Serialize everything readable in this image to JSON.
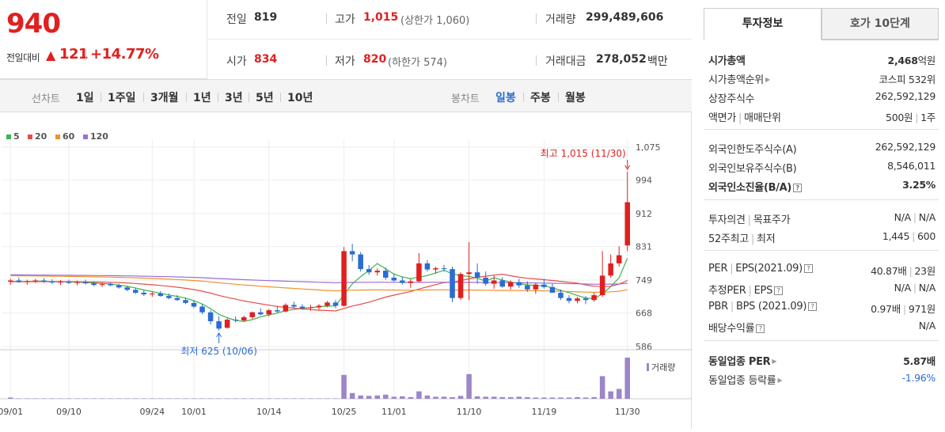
{
  "quote": {
    "price": "940",
    "change_label": "전일대비",
    "change_value": "121",
    "change_pct": "+14.77%"
  },
  "summary": {
    "prev_label": "전일",
    "prev_value": "819",
    "high_label": "고가",
    "high_value": "1,015",
    "high_limit": "(상한가 1,060)",
    "volume_label": "거래량",
    "volume_value": "299,489,606",
    "open_label": "시가",
    "open_value": "834",
    "low_label": "저가",
    "low_value": "820",
    "low_limit": "(하한가 574)",
    "amount_label": "거래대금",
    "amount_value": "278,052",
    "amount_unit": "백만"
  },
  "period_bar": {
    "line_label": "선차트",
    "line_items": [
      "1일",
      "1주일",
      "3개월",
      "1년",
      "3년",
      "5년",
      "10년"
    ],
    "candle_label": "봉차트",
    "candle_items": [
      "일봉",
      "주봉",
      "월봉"
    ],
    "candle_selected": "일봉"
  },
  "chart_data": {
    "type": "candlestick",
    "ma_legend": [
      {
        "name": "5",
        "color": "#3cb44b"
      },
      {
        "name": "20",
        "color": "#e84c4c"
      },
      {
        "name": "60",
        "color": "#f0922b"
      },
      {
        "name": "120",
        "color": "#9b6fd1"
      }
    ],
    "y_ticks": [
      "1,075",
      "994",
      "912",
      "831",
      "749",
      "668",
      "586"
    ],
    "y_range": [
      586,
      1075
    ],
    "x_ticks": [
      "09/01",
      "09/10",
      "09/24",
      "10/01",
      "10/14",
      "10/25",
      "11/01",
      "11/10",
      "11/19",
      "11/30"
    ],
    "high_annotation": "최고 1,015 (11/30)",
    "low_annotation": "최저 625 (10/06)",
    "volume_label": "거래량",
    "candles": [
      [
        745,
        752,
        738,
        748
      ],
      [
        748,
        755,
        742,
        744
      ],
      [
        744,
        750,
        738,
        746
      ],
      [
        746,
        752,
        742,
        748
      ],
      [
        748,
        754,
        742,
        745
      ],
      [
        745,
        751,
        740,
        743
      ],
      [
        743,
        749,
        737,
        745
      ],
      [
        745,
        750,
        740,
        742
      ],
      [
        742,
        748,
        736,
        744
      ],
      [
        744,
        750,
        738,
        741
      ],
      [
        741,
        746,
        734,
        737
      ],
      [
        737,
        742,
        732,
        739
      ],
      [
        739,
        744,
        734,
        736
      ],
      [
        736,
        740,
        728,
        731
      ],
      [
        731,
        735,
        722,
        725
      ],
      [
        725,
        730,
        715,
        718
      ],
      [
        718,
        724,
        710,
        714
      ],
      [
        714,
        720,
        708,
        716
      ],
      [
        716,
        722,
        708,
        710
      ],
      [
        710,
        716,
        702,
        705
      ],
      [
        705,
        712,
        698,
        700
      ],
      [
        700,
        706,
        690,
        693
      ],
      [
        693,
        700,
        680,
        684
      ],
      [
        684,
        690,
        665,
        670
      ],
      [
        670,
        675,
        640,
        648
      ],
      [
        648,
        660,
        625,
        630
      ],
      [
        632,
        655,
        630,
        652
      ],
      [
        652,
        660,
        645,
        650
      ],
      [
        650,
        662,
        646,
        658
      ],
      [
        658,
        672,
        654,
        670
      ],
      [
        670,
        680,
        662,
        665
      ],
      [
        665,
        678,
        660,
        675
      ],
      [
        675,
        686,
        668,
        672
      ],
      [
        672,
        692,
        670,
        688
      ],
      [
        688,
        696,
        680,
        684
      ],
      [
        684,
        690,
        676,
        680
      ],
      [
        680,
        688,
        674,
        682
      ],
      [
        682,
        690,
        676,
        686
      ],
      [
        686,
        698,
        682,
        694
      ],
      [
        694,
        700,
        680,
        686
      ],
      [
        686,
        830,
        684,
        820
      ],
      [
        820,
        838,
        795,
        812
      ],
      [
        812,
        818,
        770,
        776
      ],
      [
        776,
        786,
        762,
        768
      ],
      [
        768,
        778,
        760,
        772
      ],
      [
        772,
        780,
        750,
        755
      ],
      [
        755,
        765,
        745,
        748
      ],
      [
        748,
        758,
        738,
        742
      ],
      [
        742,
        752,
        730,
        746
      ],
      [
        746,
        815,
        744,
        790
      ],
      [
        790,
        798,
        770,
        775
      ],
      [
        775,
        782,
        765,
        778
      ],
      [
        778,
        786,
        770,
        776
      ],
      [
        776,
        782,
        695,
        705
      ],
      [
        705,
        768,
        700,
        764
      ],
      [
        764,
        842,
        700,
        768
      ],
      [
        768,
        790,
        740,
        755
      ],
      [
        755,
        770,
        735,
        740
      ],
      [
        740,
        760,
        728,
        748
      ],
      [
        748,
        756,
        730,
        733
      ],
      [
        733,
        748,
        726,
        744
      ],
      [
        744,
        752,
        730,
        736
      ],
      [
        736,
        746,
        720,
        726
      ],
      [
        726,
        742,
        715,
        738
      ],
      [
        738,
        752,
        728,
        732
      ],
      [
        732,
        740,
        720,
        718
      ],
      [
        718,
        726,
        700,
        705
      ],
      [
        705,
        712,
        692,
        698
      ],
      [
        698,
        708,
        692,
        704
      ],
      [
        704,
        710,
        690,
        700
      ],
      [
        700,
        718,
        696,
        712
      ],
      [
        712,
        820,
        708,
        760
      ],
      [
        760,
        812,
        755,
        790
      ],
      [
        790,
        832,
        782,
        810
      ],
      [
        834,
        1015,
        820,
        940
      ]
    ],
    "volumes": [
      3,
      1,
      1,
      1,
      1,
      1,
      1,
      1,
      1,
      1,
      1,
      1,
      1,
      1,
      1,
      1,
      1,
      1,
      1,
      1,
      1,
      1,
      1,
      1,
      1,
      1,
      1,
      1,
      1,
      1,
      1,
      1,
      1,
      1,
      1,
      1,
      1,
      1,
      1,
      1,
      58,
      14,
      8,
      7,
      8,
      10,
      5,
      6,
      4,
      18,
      8,
      5,
      5,
      4,
      7,
      60,
      6,
      5,
      5,
      4,
      4,
      5,
      4,
      3,
      3,
      3,
      3,
      3,
      4,
      3,
      4,
      55,
      18,
      24,
      100
    ]
  },
  "invest": {
    "tabs": [
      "투자정보",
      "호가 10단계"
    ],
    "rows1": [
      {
        "label": "시가총액",
        "value": "2,468",
        "unit": "억원"
      },
      {
        "label": "시가총액순위",
        "value": "코스피 532위"
      },
      {
        "label": "상장주식수",
        "value": "262,592,129"
      },
      {
        "label": "액면가",
        "label2": "매매단위",
        "value": "500원",
        "value2": "1주"
      }
    ],
    "rows2": [
      {
        "label": "외국인한도주식수(A)",
        "value": "262,592,129"
      },
      {
        "label": "외국인보유주식수(B)",
        "value": "8,546,011"
      },
      {
        "label": "외국인소진율(B/A)",
        "value": "3.25%"
      }
    ],
    "rows3": [
      {
        "label": "투자의견",
        "label2": "목표주가",
        "value": "N/A",
        "value2": "N/A"
      },
      {
        "label": "52주최고",
        "label2": "최저",
        "value": "1,445",
        "value2": "600"
      }
    ],
    "rows4": [
      {
        "label": "PER",
        "label2": "EPS(2021.09)",
        "value": "40.87배",
        "value2": "23원"
      },
      {
        "label": "추정PER",
        "label2": "EPS",
        "value": "N/A",
        "value2": "N/A"
      },
      {
        "label": "PBR",
        "label2": "BPS (2021.09)",
        "value": "0.97배",
        "value2": "971원"
      },
      {
        "label": "배당수익률",
        "value": "N/A"
      }
    ],
    "rows5": [
      {
        "label": "동일업종 PER",
        "value": "5.87배"
      },
      {
        "label": "동일업종 등락률",
        "value": "-1.96%"
      }
    ]
  }
}
